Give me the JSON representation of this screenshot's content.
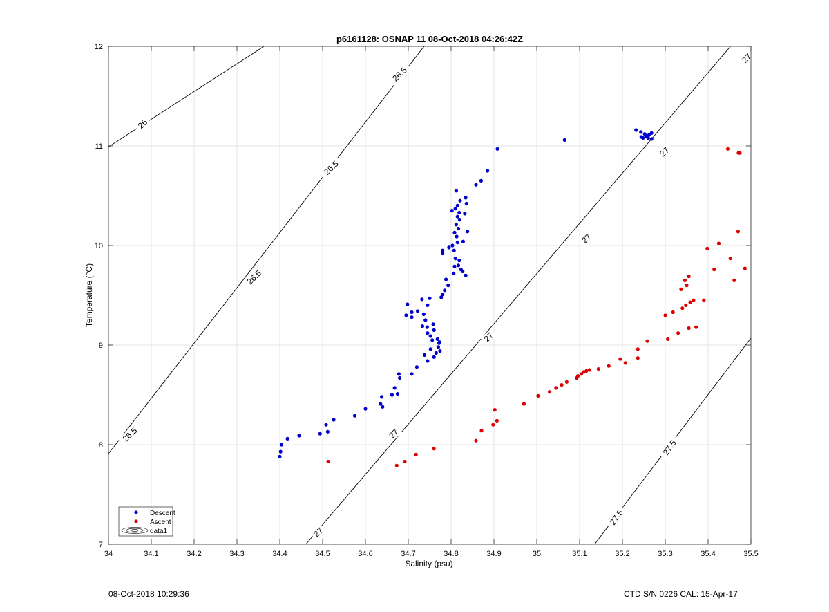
{
  "chart_data": {
    "type": "scatter",
    "title": "p6161128: OSNAP 11 08-Oct-2018 04:26:42Z",
    "xlabel": "Salinity (psu)",
    "ylabel": "Temperature (°C)",
    "xlim": [
      34,
      35.5
    ],
    "ylim": [
      7,
      12
    ],
    "x_ticks": [
      "34",
      "34.1",
      "34.2",
      "34.3",
      "34.4",
      "34.5",
      "34.6",
      "34.7",
      "34.8",
      "34.9",
      "35",
      "35.1",
      "35.2",
      "35.3",
      "35.4",
      "35.5"
    ],
    "y_ticks": [
      "7",
      "8",
      "9",
      "10",
      "11",
      "12"
    ],
    "grid": true,
    "legend_position": "bottom-left",
    "legend": [
      "Descent",
      "Ascent",
      "data1"
    ],
    "colors": {
      "descent": "#0000cc",
      "ascent": "#dd0000",
      "contour": "#000000",
      "grid": "#e6e6e6"
    },
    "series": [
      {
        "name": "Descent",
        "color": "#0000cc",
        "points": [
          [
            34.4,
            7.88
          ],
          [
            34.402,
            7.93
          ],
          [
            34.404,
            8.0
          ],
          [
            34.418,
            8.06
          ],
          [
            34.445,
            8.09
          ],
          [
            34.494,
            8.11
          ],
          [
            34.512,
            8.13
          ],
          [
            34.508,
            8.2
          ],
          [
            34.526,
            8.25
          ],
          [
            34.575,
            8.29
          ],
          [
            34.6,
            8.36
          ],
          [
            34.635,
            8.41
          ],
          [
            34.638,
            8.48
          ],
          [
            34.64,
            8.38
          ],
          [
            34.662,
            8.5
          ],
          [
            34.668,
            8.57
          ],
          [
            34.675,
            8.51
          ],
          [
            34.68,
            8.67
          ],
          [
            34.678,
            8.71
          ],
          [
            34.708,
            8.71
          ],
          [
            34.72,
            8.78
          ],
          [
            34.745,
            8.84
          ],
          [
            34.738,
            8.9
          ],
          [
            34.76,
            8.88
          ],
          [
            34.752,
            8.96
          ],
          [
            34.765,
            8.92
          ],
          [
            34.772,
            9.02
          ],
          [
            34.756,
            9.05
          ],
          [
            34.768,
            9.06
          ],
          [
            34.774,
            8.94
          ],
          [
            34.745,
            9.12
          ],
          [
            34.76,
            9.15
          ],
          [
            34.752,
            9.09
          ],
          [
            34.733,
            9.19
          ],
          [
            34.744,
            9.18
          ],
          [
            34.758,
            9.21
          ],
          [
            34.74,
            9.25
          ],
          [
            34.722,
            9.34
          ],
          [
            34.736,
            9.31
          ],
          [
            34.745,
            9.4
          ],
          [
            34.732,
            9.46
          ],
          [
            34.75,
            9.47
          ],
          [
            34.708,
            9.33
          ],
          [
            34.695,
            9.3
          ],
          [
            34.698,
            9.41
          ],
          [
            34.708,
            9.28
          ],
          [
            34.77,
            8.98
          ],
          [
            34.773,
            9.03
          ],
          [
            34.777,
            9.48
          ],
          [
            34.78,
            9.51
          ],
          [
            34.785,
            9.55
          ],
          [
            34.793,
            9.6
          ],
          [
            34.788,
            9.66
          ],
          [
            34.78,
            9.95
          ],
          [
            34.78,
            9.92
          ],
          [
            34.795,
            9.98
          ],
          [
            34.803,
            10.0
          ],
          [
            34.807,
            9.95
          ],
          [
            34.81,
            9.87
          ],
          [
            34.817,
            9.8
          ],
          [
            34.819,
            9.85
          ],
          [
            34.823,
            9.76
          ],
          [
            34.827,
            9.74
          ],
          [
            34.834,
            9.7
          ],
          [
            34.808,
            9.79
          ],
          [
            34.806,
            9.72
          ],
          [
            34.815,
            10.03
          ],
          [
            34.813,
            10.09
          ],
          [
            34.808,
            10.13
          ],
          [
            34.817,
            10.17
          ],
          [
            34.812,
            10.21
          ],
          [
            34.82,
            10.26
          ],
          [
            34.815,
            10.29
          ],
          [
            34.819,
            10.33
          ],
          [
            34.81,
            10.37
          ],
          [
            34.802,
            10.35
          ],
          [
            34.815,
            10.4
          ],
          [
            34.821,
            10.45
          ],
          [
            34.836,
            10.42
          ],
          [
            34.834,
            10.48
          ],
          [
            34.832,
            10.32
          ],
          [
            34.838,
            10.14
          ],
          [
            34.828,
            10.04
          ],
          [
            34.812,
            10.55
          ],
          [
            34.858,
            10.61
          ],
          [
            34.87,
            10.65
          ],
          [
            34.885,
            10.75
          ],
          [
            34.908,
            10.97
          ],
          [
            35.065,
            11.06
          ],
          [
            35.232,
            11.16
          ],
          [
            35.243,
            11.14
          ],
          [
            35.252,
            11.12
          ],
          [
            35.262,
            11.11
          ],
          [
            35.268,
            11.13
          ],
          [
            35.244,
            11.09
          ],
          [
            35.255,
            11.1
          ],
          [
            35.26,
            11.08
          ],
          [
            35.248,
            11.08
          ],
          [
            35.268,
            11.07
          ]
        ]
      },
      {
        "name": "Ascent",
        "color": "#dd0000",
        "points": [
          [
            34.513,
            7.83
          ],
          [
            34.673,
            7.79
          ],
          [
            34.692,
            7.83
          ],
          [
            34.718,
            7.9
          ],
          [
            34.76,
            7.96
          ],
          [
            34.858,
            8.04
          ],
          [
            34.871,
            8.14
          ],
          [
            34.898,
            8.2
          ],
          [
            34.907,
            8.24
          ],
          [
            34.902,
            8.35
          ],
          [
            34.97,
            8.41
          ],
          [
            35.003,
            8.49
          ],
          [
            35.03,
            8.53
          ],
          [
            35.045,
            8.57
          ],
          [
            35.058,
            8.6
          ],
          [
            35.07,
            8.63
          ],
          [
            35.093,
            8.67
          ],
          [
            35.096,
            8.69
          ],
          [
            35.104,
            8.71
          ],
          [
            35.11,
            8.73
          ],
          [
            35.116,
            8.74
          ],
          [
            35.123,
            8.75
          ],
          [
            35.144,
            8.76
          ],
          [
            35.168,
            8.79
          ],
          [
            35.195,
            8.86
          ],
          [
            35.207,
            8.82
          ],
          [
            35.236,
            8.87
          ],
          [
            35.236,
            8.96
          ],
          [
            35.258,
            9.04
          ],
          [
            35.306,
            9.06
          ],
          [
            35.33,
            9.12
          ],
          [
            35.355,
            9.17
          ],
          [
            35.372,
            9.18
          ],
          [
            35.3,
            9.3
          ],
          [
            35.318,
            9.33
          ],
          [
            35.34,
            9.37
          ],
          [
            35.348,
            9.4
          ],
          [
            35.358,
            9.43
          ],
          [
            35.366,
            9.45
          ],
          [
            35.39,
            9.45
          ],
          [
            35.337,
            9.56
          ],
          [
            35.35,
            9.6
          ],
          [
            35.346,
            9.65
          ],
          [
            35.355,
            9.69
          ],
          [
            35.398,
            9.97
          ],
          [
            35.414,
            9.76
          ],
          [
            35.425,
            10.02
          ],
          [
            35.452,
            9.87
          ],
          [
            35.461,
            9.65
          ],
          [
            35.486,
            9.77
          ],
          [
            35.47,
            10.14
          ],
          [
            35.446,
            10.97
          ],
          [
            35.471,
            10.93
          ],
          [
            35.474,
            10.93
          ]
        ]
      }
    ],
    "contours": [
      {
        "level": "26",
        "points": [
          [
            34.0,
            10.99
          ],
          [
            34.363,
            12.0
          ]
        ],
        "labels": [
          [
            34.08,
            11.22
          ]
        ]
      },
      {
        "level": "26.5",
        "points": [
          [
            34.0,
            7.91
          ],
          [
            34.737,
            12.0
          ]
        ],
        "labels": [
          [
            34.05,
            8.1
          ],
          [
            34.34,
            9.68
          ],
          [
            34.52,
            10.78
          ],
          [
            34.68,
            11.72
          ]
        ]
      },
      {
        "level": "27",
        "points": [
          [
            34.461,
            7.0
          ],
          [
            35.5,
            12.24
          ]
        ],
        "labels": [
          [
            34.49,
            7.12
          ],
          [
            34.666,
            8.11
          ],
          [
            34.888,
            9.08
          ],
          [
            35.116,
            10.07
          ],
          [
            35.298,
            10.94
          ],
          [
            35.49,
            11.88
          ]
        ]
      },
      {
        "level": "27.5",
        "points": [
          [
            35.135,
            7.0
          ],
          [
            35.5,
            9.07
          ]
        ],
        "labels": [
          [
            35.186,
            7.27
          ],
          [
            35.31,
            7.97
          ]
        ]
      }
    ],
    "contour_label_angles": {
      "26": -43,
      "26.5": -43,
      "27": -43,
      "27.5": -55
    }
  },
  "footer": {
    "timestamp": "08-Oct-2018 10:29:36",
    "instrument": "CTD S/N 0226  CAL: 15-Apr-17"
  }
}
